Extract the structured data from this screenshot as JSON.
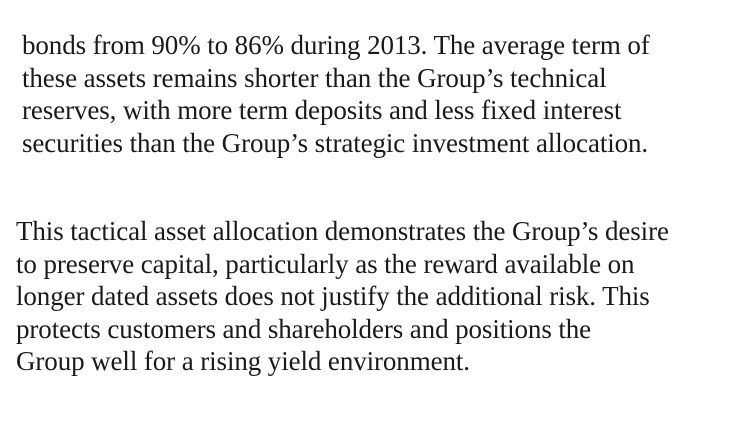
{
  "document": {
    "paragraphs": [
      {
        "lines": [
          "bonds from 90% to 86% during 2013. The average term of",
          "these assets remains shorter than the Group’s technical",
          "reserves, with more term deposits and less fixed interest",
          "securities than the Group’s strategic investment allocation."
        ]
      },
      {
        "lines": [
          "This tactical asset allocation demonstrates the Group’s desire",
          "to preserve capital, particularly as the reward available on",
          "longer dated assets does not justify the additional risk. This",
          "protects customers and shareholders and positions the",
          "Group well for a rising yield environment."
        ]
      }
    ]
  }
}
